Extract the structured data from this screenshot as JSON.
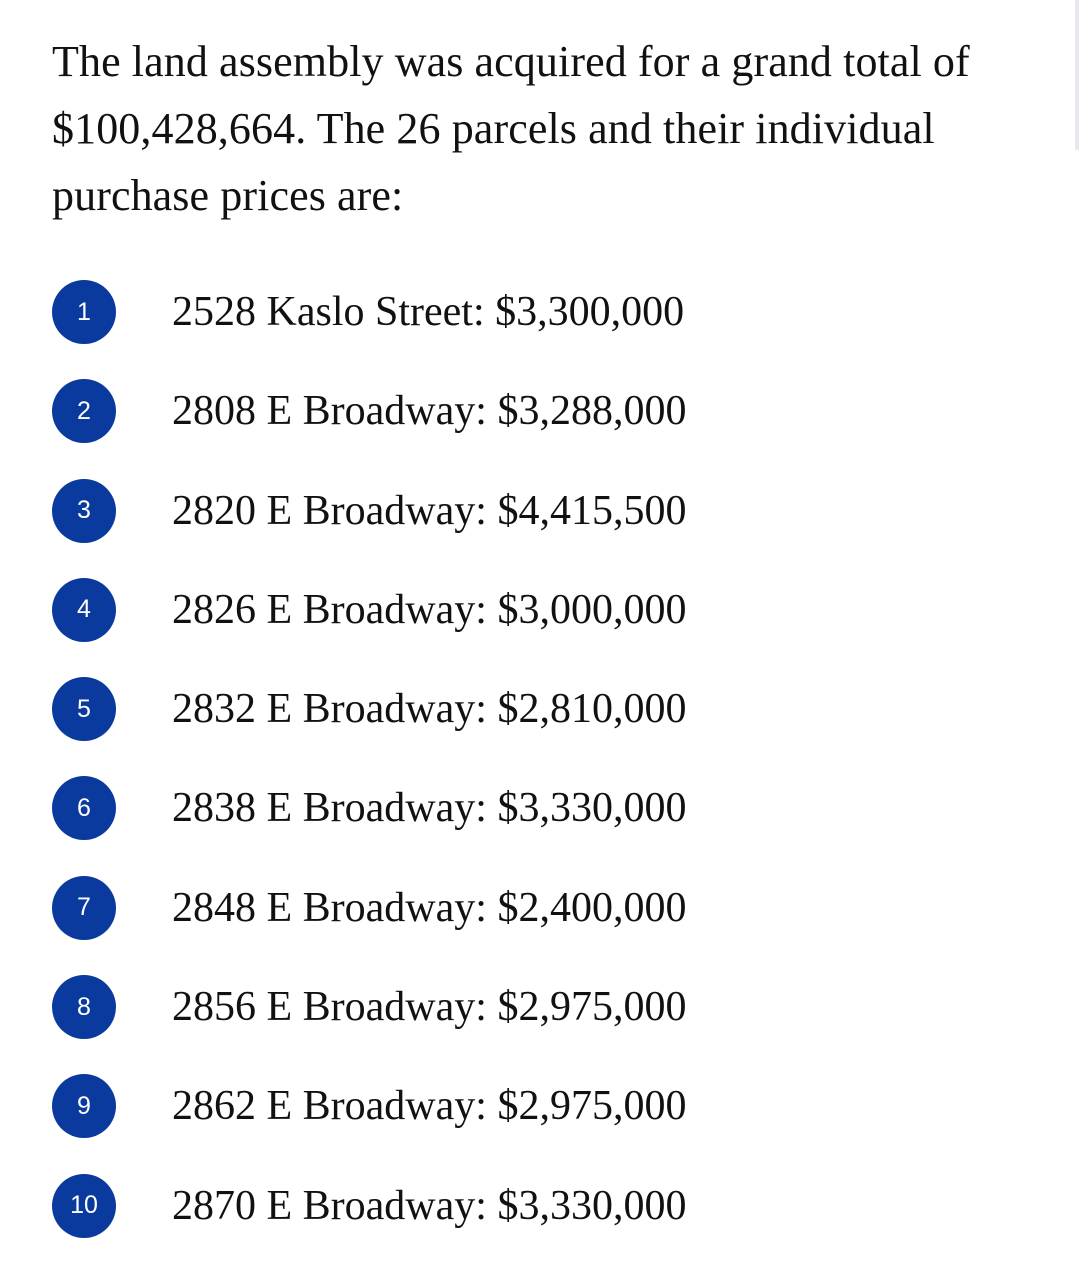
{
  "intro": "The land assembly was acquired for a grand total of $100,428,664. The 26 parcels and their individual purchase prices are:",
  "colors": {
    "badge": "#0b3a9e",
    "text": "#111111",
    "background": "#ffffff"
  },
  "parcels": [
    {
      "number": "1",
      "text": "2528 Kaslo Street: $3,300,000"
    },
    {
      "number": "2",
      "text": "2808 E Broadway: $3,288,000"
    },
    {
      "number": "3",
      "text": "2820 E Broadway: $4,415,500"
    },
    {
      "number": "4",
      "text": "2826 E Broadway: $3,000,000"
    },
    {
      "number": "5",
      "text": "2832 E Broadway: $2,810,000"
    },
    {
      "number": "6",
      "text": "2838 E Broadway: $3,330,000"
    },
    {
      "number": "7",
      "text": "2848 E Broadway: $2,400,000"
    },
    {
      "number": "8",
      "text": "2856 E Broadway: $2,975,000"
    },
    {
      "number": "9",
      "text": "2862 E Broadway: $2,975,000"
    },
    {
      "number": "10",
      "text": "2870 E Broadway: $3,330,000"
    }
  ]
}
